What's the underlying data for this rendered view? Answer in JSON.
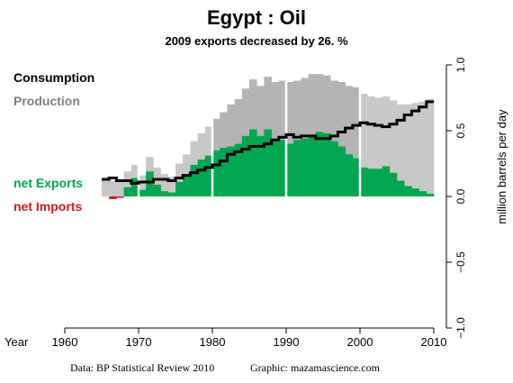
{
  "chart_data": {
    "type": "bar",
    "title": "Egypt :  Oil",
    "subtitle": "2009 exports decreased by 26. %",
    "ylabel": "million barrels per day",
    "xlabel_prefix": "Year",
    "x_ticks": [
      1960,
      1970,
      1980,
      1990,
      2000,
      2010
    ],
    "y_ticks": [
      {
        "value": 1.0,
        "label": "1.0"
      },
      {
        "value": 0.5,
        "label": "0.5"
      },
      {
        "value": 0.0,
        "label": "0.0"
      },
      {
        "value": -0.5,
        "label": "−0.5"
      },
      {
        "value": -1.0,
        "label": "−1.0"
      }
    ],
    "xlim": [
      1960,
      2010
    ],
    "ylim": [
      -1.0,
      1.0
    ],
    "decade_separators": [
      1970,
      1980,
      1990,
      2000
    ],
    "legend": {
      "consumption": "Consumption",
      "production": "Production",
      "net_exports": "net Exports",
      "net_imports": "net Imports"
    },
    "colors": {
      "consumption": "#000000",
      "production_light": "#c8c8c8",
      "production_dark": "#b4b4b4",
      "net_exports": "#00a650",
      "net_imports": "#d01c1c",
      "separator": "#ffffff",
      "text_production": "#808080"
    },
    "years": [
      1965,
      1966,
      1967,
      1968,
      1969,
      1970,
      1971,
      1972,
      1973,
      1974,
      1975,
      1976,
      1977,
      1978,
      1979,
      1980,
      1981,
      1982,
      1983,
      1984,
      1985,
      1986,
      1987,
      1988,
      1989,
      1990,
      1991,
      1992,
      1993,
      1994,
      1995,
      1996,
      1997,
      1998,
      1999,
      2000,
      2001,
      2002,
      2003,
      2004,
      2005,
      2006,
      2007,
      2008,
      2009
    ],
    "production": [
      0.13,
      0.12,
      0.11,
      0.19,
      0.24,
      0.16,
      0.3,
      0.22,
      0.17,
      0.15,
      0.25,
      0.32,
      0.42,
      0.48,
      0.53,
      0.59,
      0.64,
      0.7,
      0.74,
      0.82,
      0.89,
      0.84,
      0.91,
      0.87,
      0.88,
      0.87,
      0.88,
      0.9,
      0.93,
      0.93,
      0.92,
      0.88,
      0.87,
      0.84,
      0.83,
      0.78,
      0.76,
      0.75,
      0.76,
      0.73,
      0.7,
      0.7,
      0.71,
      0.72,
      0.74
    ],
    "consumption": [
      0.13,
      0.14,
      0.12,
      0.12,
      0.1,
      0.11,
      0.11,
      0.13,
      0.13,
      0.12,
      0.14,
      0.16,
      0.18,
      0.2,
      0.22,
      0.24,
      0.27,
      0.32,
      0.34,
      0.36,
      0.38,
      0.38,
      0.4,
      0.43,
      0.45,
      0.47,
      0.45,
      0.46,
      0.46,
      0.44,
      0.44,
      0.46,
      0.49,
      0.52,
      0.54,
      0.56,
      0.55,
      0.54,
      0.53,
      0.55,
      0.58,
      0.62,
      0.65,
      0.68,
      0.72
    ]
  },
  "footer": {
    "source": "Data: BP Statistical Review 2010",
    "graphic": "Graphic: mazamascience.com"
  }
}
